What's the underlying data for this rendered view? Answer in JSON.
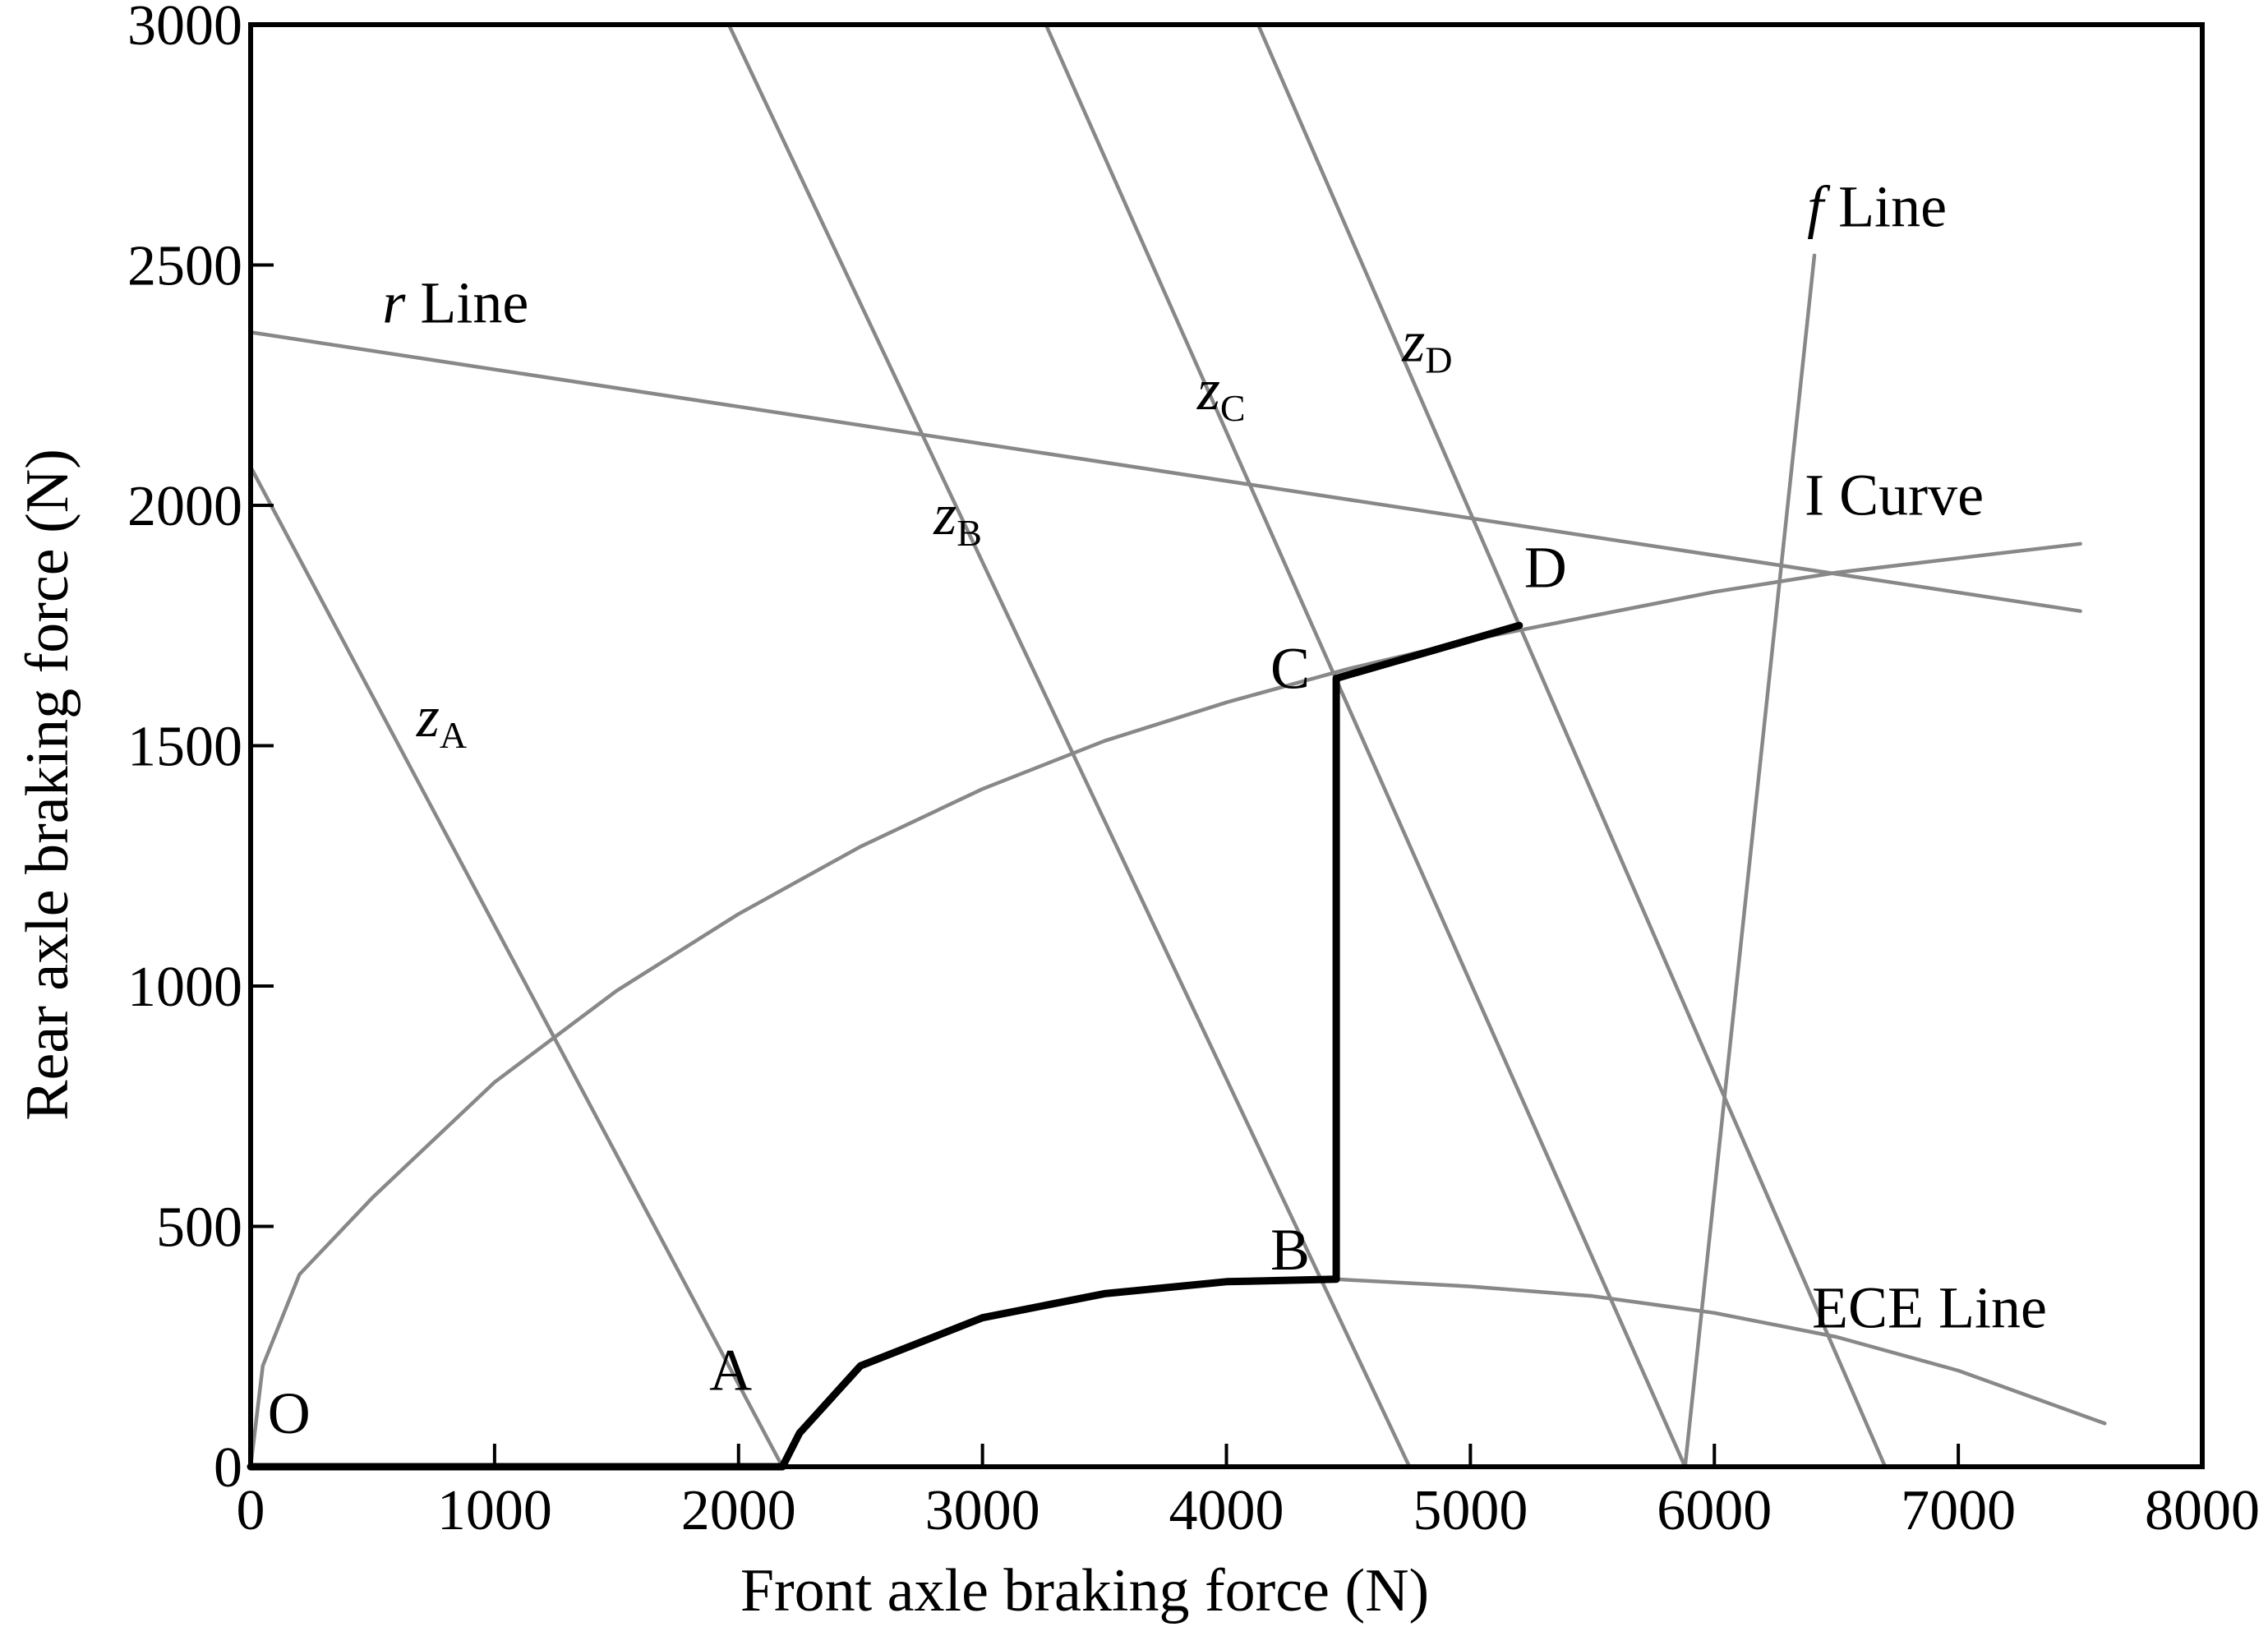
{
  "chart_data": {
    "type": "line",
    "xlabel": "Front axle braking force (N)",
    "ylabel": "Rear axle braking force (N)",
    "xlim": [
      0,
      8000
    ],
    "ylim": [
      0,
      3000
    ],
    "x_ticks": [
      "0",
      "1000",
      "2000",
      "3000",
      "4000",
      "5000",
      "6000",
      "7000",
      "8000"
    ],
    "y_ticks": [
      "0",
      "500",
      "1000",
      "1500",
      "2000",
      "2500",
      "3000"
    ],
    "x_tick_values": [
      0,
      1000,
      2000,
      3000,
      4000,
      5000,
      6000,
      7000,
      8000
    ],
    "y_tick_values": [
      0,
      500,
      1000,
      1500,
      2000,
      2500,
      3000
    ],
    "grid": false,
    "colors": {
      "reference": "#888888",
      "braking_path": "#000000"
    },
    "series": [
      {
        "key": "zA",
        "style": "reference",
        "x": [
          0,
          2180
        ],
        "y": [
          2080,
          0
        ]
      },
      {
        "key": "zB",
        "style": "reference",
        "x": [
          1960,
          4750
        ],
        "y": [
          3000,
          0
        ]
      },
      {
        "key": "zC",
        "style": "reference",
        "x": [
          3260,
          5880
        ],
        "y": [
          3000,
          0
        ]
      },
      {
        "key": "zD",
        "style": "reference",
        "x": [
          4130,
          6700
        ],
        "y": [
          3000,
          0
        ]
      },
      {
        "key": "r",
        "style": "reference",
        "x": [
          0,
          7500
        ],
        "y": [
          2360,
          1780
        ]
      },
      {
        "key": "f",
        "style": "reference",
        "x": [
          5880,
          6410
        ],
        "y": [
          0,
          2520
        ]
      },
      {
        "key": "I",
        "style": "reference",
        "x": [
          0,
          50,
          200,
          500,
          1000,
          1500,
          2000,
          2500,
          3000,
          3500,
          4000,
          4500,
          5000,
          5500,
          6000,
          6500,
          7000,
          7500
        ],
        "y": [
          0,
          210,
          400,
          560,
          800,
          990,
          1150,
          1290,
          1410,
          1510,
          1590,
          1660,
          1720,
          1770,
          1820,
          1860,
          1890,
          1920
        ]
      },
      {
        "key": "ECE",
        "style": "reference",
        "x": [
          4450,
          5000,
          5500,
          6000,
          6500,
          7000,
          7600
        ],
        "y": [
          390,
          375,
          355,
          320,
          270,
          200,
          90
        ]
      },
      {
        "key": "path",
        "style": "braking_path",
        "x": [
          0,
          2180,
          2250,
          2500,
          3000,
          3500,
          4000,
          4450,
          4450,
          5200
        ],
        "y": [
          0,
          0,
          70,
          210,
          310,
          360,
          385,
          390,
          1640,
          1750
        ]
      }
    ],
    "annotations": [
      {
        "text": "O",
        "x": 70,
        "y": 70
      },
      {
        "text": "A",
        "x": 1880,
        "y": 160
      },
      {
        "text": "B",
        "x": 4180,
        "y": 410
      },
      {
        "text": "C",
        "x": 4180,
        "y": 1620
      },
      {
        "text": "D",
        "x": 5220,
        "y": 1830
      },
      {
        "text": "z",
        "sub": "A",
        "x": 680,
        "y": 1520,
        "italic": true
      },
      {
        "text": "z",
        "sub": "B",
        "x": 2800,
        "y": 1940,
        "italic": true
      },
      {
        "text": "z",
        "sub": "C",
        "x": 3880,
        "y": 2200,
        "italic": true
      },
      {
        "text": "z",
        "sub": "D",
        "x": 4720,
        "y": 2300,
        "italic": true
      },
      {
        "text": "r",
        "suffix": " Line",
        "x": 540,
        "y": 2380,
        "italic": true
      },
      {
        "text": "f",
        "suffix": " Line",
        "x": 6380,
        "y": 2580,
        "italic": true
      },
      {
        "text": "I Curve",
        "x": 6370,
        "y": 1980
      },
      {
        "text": "ECE Line",
        "x": 6400,
        "y": 290
      }
    ]
  }
}
